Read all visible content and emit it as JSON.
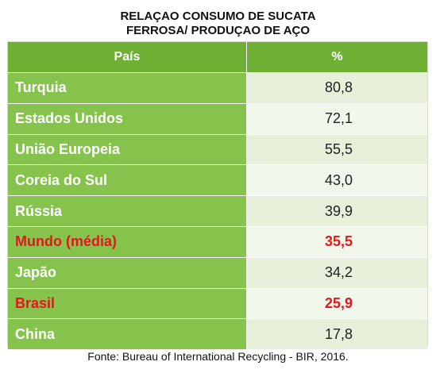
{
  "title": {
    "line1": "RELAÇAO CONSUMO DE SUCATA",
    "line2": "FERROSA/ PRODUÇAO DE AÇO"
  },
  "source": "Fonte: Bureau of International Recycling - BIR, 2016.",
  "colors": {
    "header_green": "#6eb033",
    "name_green": "#86c34d",
    "value_light": "#e6f0da",
    "highlight_red": "#e5161b"
  },
  "chart_data": {
    "type": "table",
    "title": "RELAÇAO CONSUMO DE SUCATA FERROSA/ PRODUÇAO DE AÇO",
    "columns": [
      "País",
      "%"
    ],
    "rows": [
      {
        "name": "Turquia",
        "value": "80,8",
        "highlight": false
      },
      {
        "name": "Estados Unidos",
        "value": "72,1",
        "highlight": false
      },
      {
        "name": "União Europeia",
        "value": "55,5",
        "highlight": false
      },
      {
        "name": "Coreia do Sul",
        "value": "43,0",
        "highlight": false
      },
      {
        "name": "Rússia",
        "value": "39,9",
        "highlight": false
      },
      {
        "name": "Mundo (média)",
        "value": "35,5",
        "highlight": true
      },
      {
        "name": "Japão",
        "value": "34,2",
        "highlight": false
      },
      {
        "name": "Brasil",
        "value": "25,9",
        "highlight": true
      },
      {
        "name": "China",
        "value": "17,8",
        "highlight": false
      }
    ]
  }
}
